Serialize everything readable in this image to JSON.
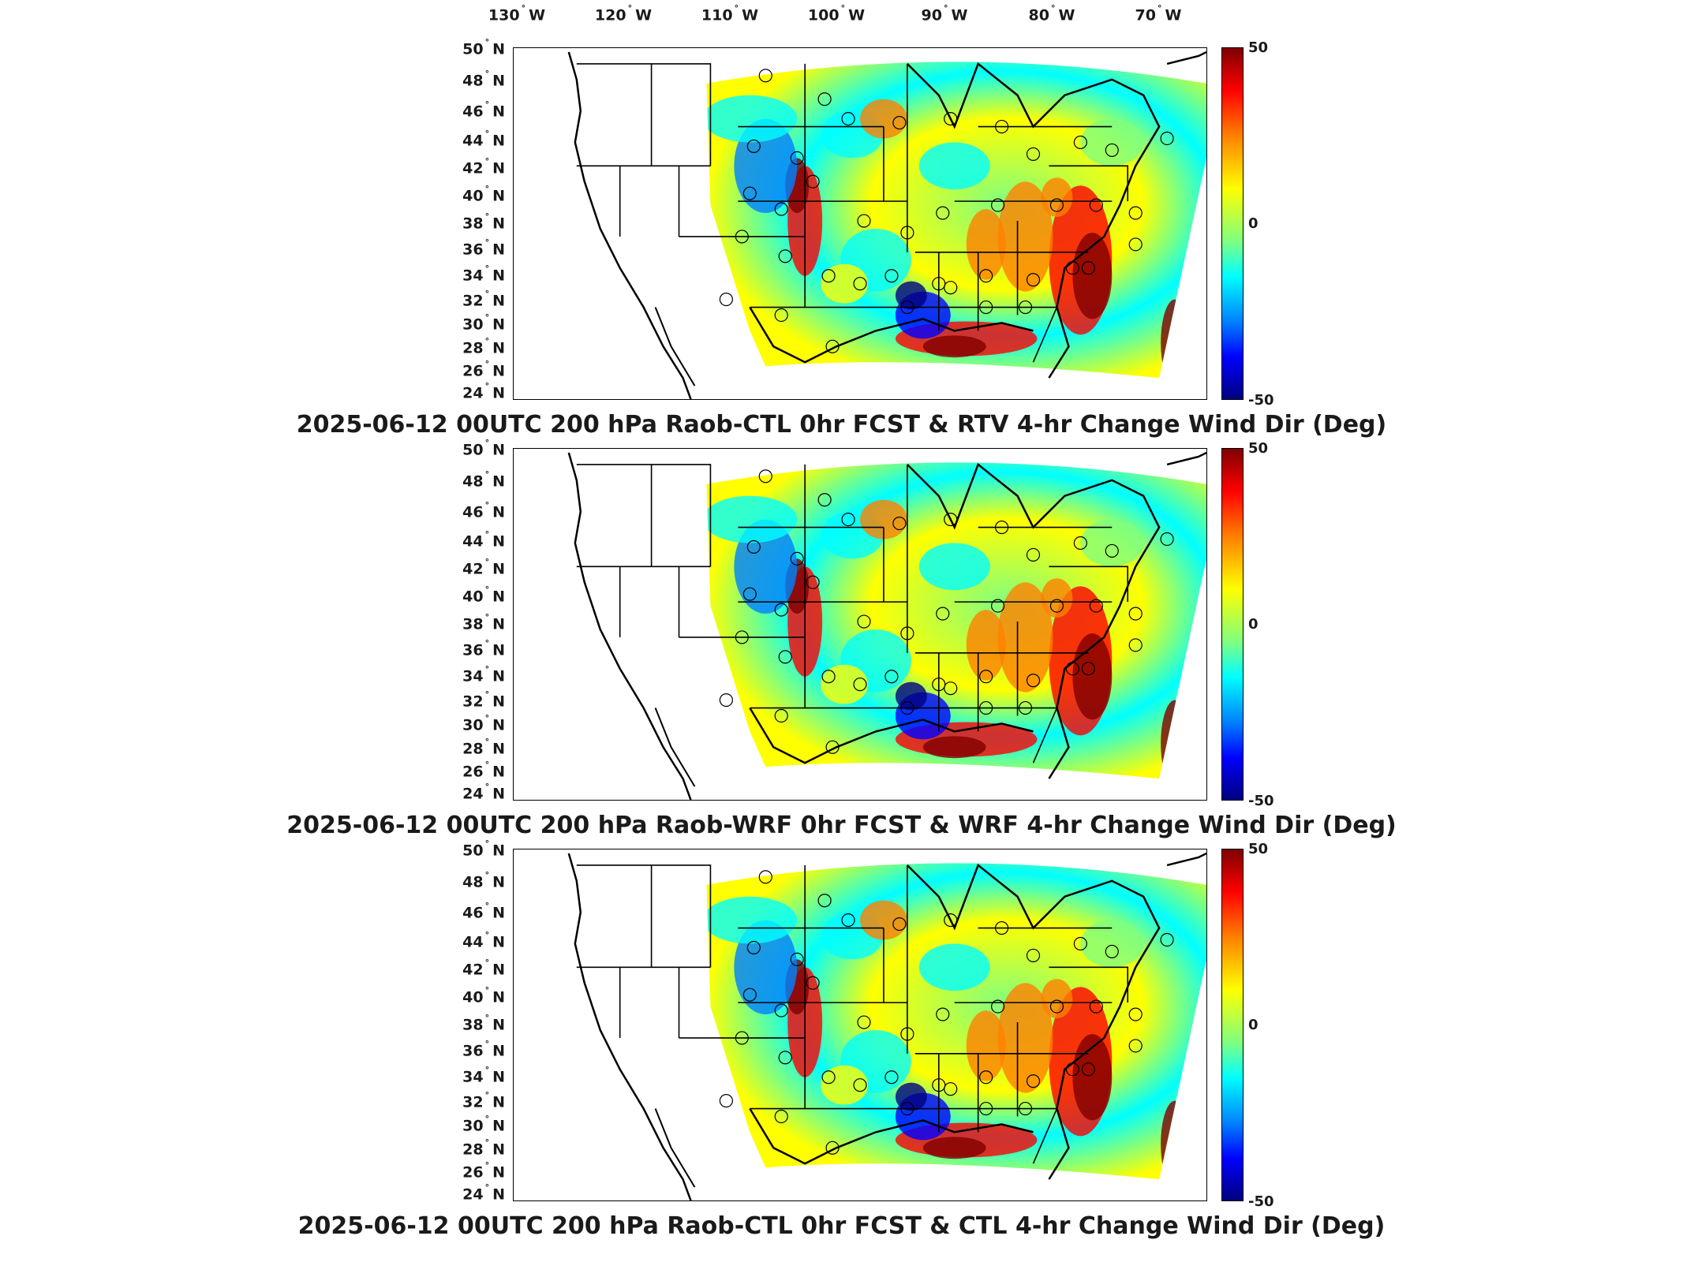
{
  "lon_ticks": [
    "130",
    "120",
    "110",
    "100",
    "90",
    "80",
    "70"
  ],
  "lon_hemisphere": "W",
  "lat_ticks": [
    "50",
    "48",
    "46",
    "44",
    "42",
    "40",
    "38",
    "36",
    "34",
    "32",
    "30",
    "28",
    "26",
    "24"
  ],
  "lat_hemisphere": "N",
  "colorbar": {
    "max": "50",
    "mid": "0",
    "min": "-50"
  },
  "colormap": [
    "#7f0000",
    "#ff0000",
    "#ff8000",
    "#ffff00",
    "#80ff80",
    "#00ffff",
    "#0080ff",
    "#0000ff",
    "#00007f"
  ],
  "panels": [
    {
      "title": "2025-06-12 00UTC 200 hPa Raob-CTL 0hr FCST & RTV 4-hr Change Wind Dir (Deg)"
    },
    {
      "title": "2025-06-12 00UTC 200 hPa Raob-WRF 0hr FCST & WRF 4-hr Change Wind Dir (Deg)"
    },
    {
      "title": "2025-06-12 00UTC 200 hPa Raob-CTL 0hr FCST & CTL 4-hr Change Wind Dir (Deg)"
    }
  ]
}
